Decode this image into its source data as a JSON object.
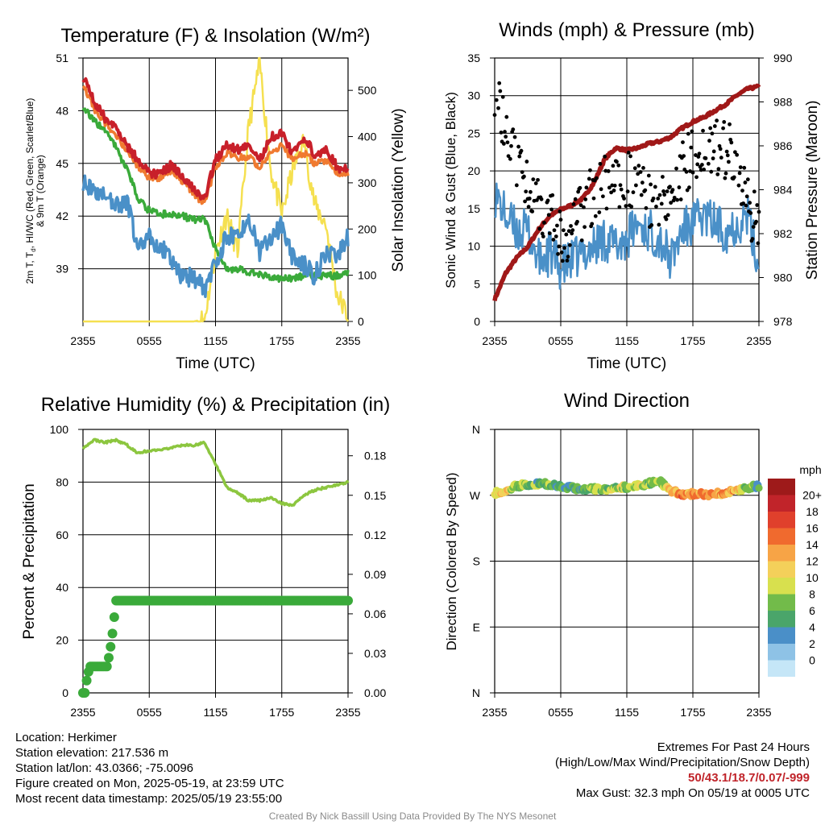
{
  "colors": {
    "red": "#c8202a",
    "orange": "#f07a30",
    "green": "#3aaa3a",
    "blue": "#4a90c8",
    "yellow": "#f5e050",
    "maroon": "#a01818",
    "black": "#000000",
    "rh_green": "#8cc63f"
  },
  "chart_data": [
    {
      "type": "line",
      "title": "Temperature (F) & Insolation (W/m²)",
      "xlabel": "Time (UTC)",
      "ylabel_left": "2m T, Td, HI/WC (Red, Green, Scarlet/Blue) & 9m T (Orange)",
      "ylabel_left_lines": [
        "2m T, T",
        "d",
        ", HI/WC (Red, Green, Scarlet/Blue)",
        "& 9m T (Orange)"
      ],
      "ylabel_right": "Solar Insolation (Yellow)",
      "xticks": [
        "2355",
        "0555",
        "1155",
        "1755",
        "2355"
      ],
      "ylim": [
        36,
        51
      ],
      "yticks": [
        39,
        42,
        45,
        48,
        51
      ],
      "ylim_right": [
        0,
        570
      ],
      "yticks_right": [
        0,
        100,
        200,
        300,
        400,
        500
      ],
      "x_hours": [
        0,
        1,
        2,
        3,
        4,
        5,
        6,
        7,
        8,
        9,
        10,
        11,
        12,
        13,
        14,
        15,
        16,
        17,
        18,
        19,
        20,
        21,
        22,
        23,
        24
      ],
      "series": [
        {
          "name": "2m T",
          "axis": "left",
          "values": [
            50.0,
            48.5,
            47.6,
            47.0,
            46.0,
            45.2,
            44.4,
            44.4,
            44.9,
            44.2,
            43.6,
            43.0,
            45.2,
            46.0,
            45.8,
            46.0,
            45.2,
            46.5,
            46.7,
            45.6,
            46.5,
            45.5,
            45.8,
            44.8,
            44.6
          ]
        },
        {
          "name": "9m T",
          "axis": "left",
          "values": [
            49.6,
            48.1,
            47.3,
            46.6,
            45.7,
            44.8,
            44.2,
            44.2,
            44.6,
            44.0,
            43.3,
            42.7,
            44.8,
            45.6,
            45.3,
            45.4,
            44.8,
            45.7,
            46.0,
            45.2,
            45.6,
            45.0,
            45.2,
            44.5,
            44.4
          ]
        },
        {
          "name": "Td",
          "axis": "left",
          "values": [
            48.2,
            47.4,
            46.9,
            45.9,
            44.6,
            43.0,
            42.3,
            42.1,
            42.1,
            42.0,
            41.8,
            41.8,
            40.2,
            39.0,
            39.0,
            38.8,
            38.7,
            38.5,
            38.4,
            38.5,
            38.6,
            38.6,
            38.6,
            38.6,
            38.8
          ]
        },
        {
          "name": "HI/WC",
          "axis": "left",
          "values": [
            44.0,
            43.2,
            43.4,
            42.6,
            42.8,
            40.0,
            40.8,
            40.2,
            39.6,
            38.5,
            38.5,
            37.8,
            39.3,
            40.8,
            41.0,
            41.8,
            40.0,
            40.6,
            41.6,
            39.6,
            39.2,
            38.6,
            40.0,
            39.8,
            40.8
          ]
        },
        {
          "name": "Solar Insolation",
          "axis": "right",
          "values": [
            0,
            0,
            0,
            0,
            0,
            0,
            0,
            0,
            0,
            0,
            0,
            5,
            150,
            230,
            150,
            420,
            560,
            330,
            230,
            330,
            390,
            250,
            210,
            60,
            10
          ]
        }
      ]
    },
    {
      "type": "line",
      "title": "Winds (mph) & Pressure (mb)",
      "xlabel": "Time (UTC)",
      "ylabel_left": "Sonic Wind & Gust (Blue, Black)",
      "ylabel_right": "Station Pressure (Maroon)",
      "xticks": [
        "2355",
        "0555",
        "1155",
        "1755",
        "2355"
      ],
      "ylim": [
        0,
        35
      ],
      "yticks": [
        0,
        5,
        10,
        15,
        20,
        25,
        30,
        35
      ],
      "ylim_right": [
        978,
        990
      ],
      "yticks_right": [
        978,
        980,
        982,
        984,
        986,
        988,
        990
      ],
      "x_hours": [
        0,
        1,
        2,
        3,
        4,
        5,
        6,
        7,
        8,
        9,
        10,
        11,
        12,
        13,
        14,
        15,
        16,
        17,
        18,
        19,
        20,
        21,
        22,
        23,
        24
      ],
      "series": [
        {
          "name": "Sonic Wind",
          "axis": "left",
          "values": [
            17,
            14,
            12,
            12,
            8,
            9,
            7,
            8,
            9,
            10,
            11,
            10,
            11,
            13,
            12,
            11,
            8,
            12,
            13,
            14,
            13,
            12,
            13,
            14,
            7
          ]
        },
        {
          "name": "Gust",
          "axis": "left",
          "values": [
            30,
            25,
            21,
            19,
            15,
            14,
            12,
            12,
            15,
            17,
            18,
            18,
            19,
            17,
            16,
            15,
            17,
            20,
            22,
            24,
            23,
            23,
            21,
            16,
            12
          ]
        },
        {
          "name": "Station Pressure",
          "axis": "right",
          "values": [
            979.0,
            980.2,
            980.9,
            981.4,
            982.2,
            982.8,
            983.1,
            983.3,
            983.6,
            984.3,
            985.4,
            985.9,
            985.8,
            985.9,
            986.1,
            986.2,
            986.4,
            986.8,
            987.1,
            987.3,
            987.6,
            987.9,
            988.3,
            988.6,
            988.7
          ]
        }
      ]
    },
    {
      "type": "line",
      "title": "Relative Humidity (%) & Precipitation (in)",
      "ylabel_left": "Percent & Precipitation",
      "xticks": [
        "2355",
        "0555",
        "1155",
        "1755",
        "2355"
      ],
      "ylim": [
        0,
        100
      ],
      "yticks": [
        0,
        20,
        40,
        60,
        80,
        100
      ],
      "ylim_right": [
        0,
        0.2
      ],
      "yticks_right": [
        "0.00",
        "0.03",
        "0.06",
        "0.09",
        "0.12",
        "0.15",
        "0.18"
      ],
      "x_hours": [
        0,
        1,
        2,
        3,
        4,
        5,
        6,
        7,
        8,
        9,
        10,
        11,
        12,
        13,
        14,
        15,
        16,
        17,
        18,
        19,
        20,
        21,
        22,
        23,
        24
      ],
      "series": [
        {
          "name": "Relative Humidity",
          "axis": "left",
          "values": [
            93,
            96,
            95,
            96,
            94,
            91,
            92,
            92,
            93,
            94,
            94,
            95,
            87,
            78,
            76,
            73,
            73,
            74,
            72,
            71,
            75,
            77,
            78,
            79,
            80
          ]
        },
        {
          "name": "Precipitation",
          "axis": "right",
          "values": [
            0.0,
            0.02,
            0.02,
            0.07,
            0.07,
            0.07,
            0.07,
            0.07,
            0.07,
            0.07,
            0.07,
            0.07,
            0.07,
            0.07,
            0.07,
            0.07,
            0.07,
            0.07,
            0.07,
            0.07,
            0.07,
            0.07,
            0.07,
            0.07,
            0.07
          ]
        }
      ]
    },
    {
      "type": "scatter",
      "title": "Wind Direction",
      "ylabel_left": "Direction (Colored By Speed)",
      "xticks": [
        "2355",
        "0555",
        "1155",
        "1755",
        "2355"
      ],
      "yticks": [
        "N",
        "E",
        "S",
        "W",
        "N"
      ],
      "ylim": [
        0,
        360
      ],
      "x_hours": [
        0,
        1,
        2,
        3,
        4,
        5,
        6,
        7,
        8,
        9,
        10,
        11,
        12,
        13,
        14,
        15,
        16,
        17,
        18,
        19,
        20,
        21,
        22,
        23,
        24
      ],
      "series": [
        {
          "name": "Direction",
          "values": [
            273,
            277,
            283,
            284,
            286,
            285,
            283,
            280,
            278,
            279,
            278,
            280,
            281,
            283,
            286,
            289,
            276,
            272,
            272,
            271,
            272,
            274,
            276,
            280,
            283
          ]
        },
        {
          "name": "Speed",
          "values": [
            12,
            14,
            10,
            9,
            8,
            8,
            7,
            7,
            8,
            9,
            10,
            10,
            10,
            11,
            10,
            8,
            14,
            16,
            15,
            16,
            16,
            15,
            14,
            8,
            7
          ]
        }
      ],
      "colorbar": {
        "title": "mph",
        "labels": [
          "20+",
          "18",
          "16",
          "14",
          "12",
          "10",
          "8",
          "6",
          "4",
          "2",
          "0"
        ],
        "colors": [
          "#9e1a1a",
          "#c1242a",
          "#e0402c",
          "#f06a2e",
          "#f7a446",
          "#f4d05a",
          "#d8e04e",
          "#72bb4a",
          "#4aa56a",
          "#4a8fc8",
          "#8ec2e6",
          "#c5e6f7"
        ]
      }
    }
  ],
  "info": {
    "location": "Location: Herkimer",
    "elevation": "Station elevation: 217.536 m",
    "latlon": "Station lat/lon: 43.0366; -75.0096",
    "created": "Figure created on Mon, 2025-05-19, at 23:59 UTC",
    "recent": "Most recent data timestamp: 2025/05/19 23:55:00"
  },
  "extremes": {
    "title": "Extremes For Past 24 Hours",
    "subtitle": "(High/Low/Max Wind/Precipitation/Snow Depth)",
    "values": "50/43.1/18.7/0.07/-999",
    "gust": "Max Gust: 32.3 mph On 05/19 at 0005 UTC"
  },
  "credit": "Created By Nick Bassill Using Data Provided By The NYS Mesonet"
}
